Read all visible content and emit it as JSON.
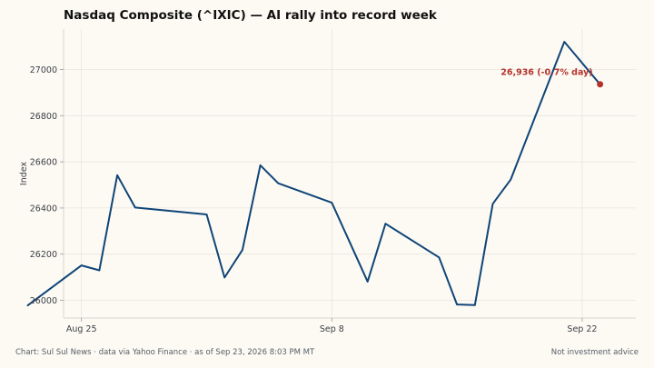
{
  "chart_data": {
    "type": "line",
    "title": "Nasdaq Composite (^IXIC) — AI rally into record week",
    "ylabel": "Index",
    "xlabel": "",
    "ylim": [
      25920,
      27180
    ],
    "yticks": [
      26000,
      26200,
      26400,
      26600,
      26800,
      27000
    ],
    "xtick_labels": [
      "Aug 25",
      "Sep 8",
      "Sep 22"
    ],
    "xlim": [
      "2026-08-24",
      "2026-09-25"
    ],
    "grid": true,
    "x": [
      "2026-08-22",
      "2026-08-25",
      "2026-08-26",
      "2026-08-27",
      "2026-08-28",
      "2026-09-01",
      "2026-09-02",
      "2026-09-03",
      "2026-09-04",
      "2026-09-05",
      "2026-09-08",
      "2026-09-10",
      "2026-09-11",
      "2026-09-14",
      "2026-09-15",
      "2026-09-16",
      "2026-09-17",
      "2026-09-18",
      "2026-09-21",
      "2026-09-23"
    ],
    "series": [
      {
        "values": [
          25978,
          26151,
          26130,
          26542,
          26402,
          26372,
          26099,
          26218,
          26585,
          26507,
          26423,
          26081,
          26332,
          26186,
          25982,
          25979,
          26418,
          26523,
          27120,
          26936
        ],
        "color": "#0f4577"
      }
    ],
    "annotation": {
      "text": "26,936  (-0.7% day)",
      "x": "2026-09-23",
      "y": 26936,
      "color": "#b3332b"
    }
  },
  "footer": {
    "left": "Chart: Sul Sul News · data via Yahoo Finance · as of Sep 23, 2026 8:03 PM MT",
    "right": "Not investment advice"
  }
}
